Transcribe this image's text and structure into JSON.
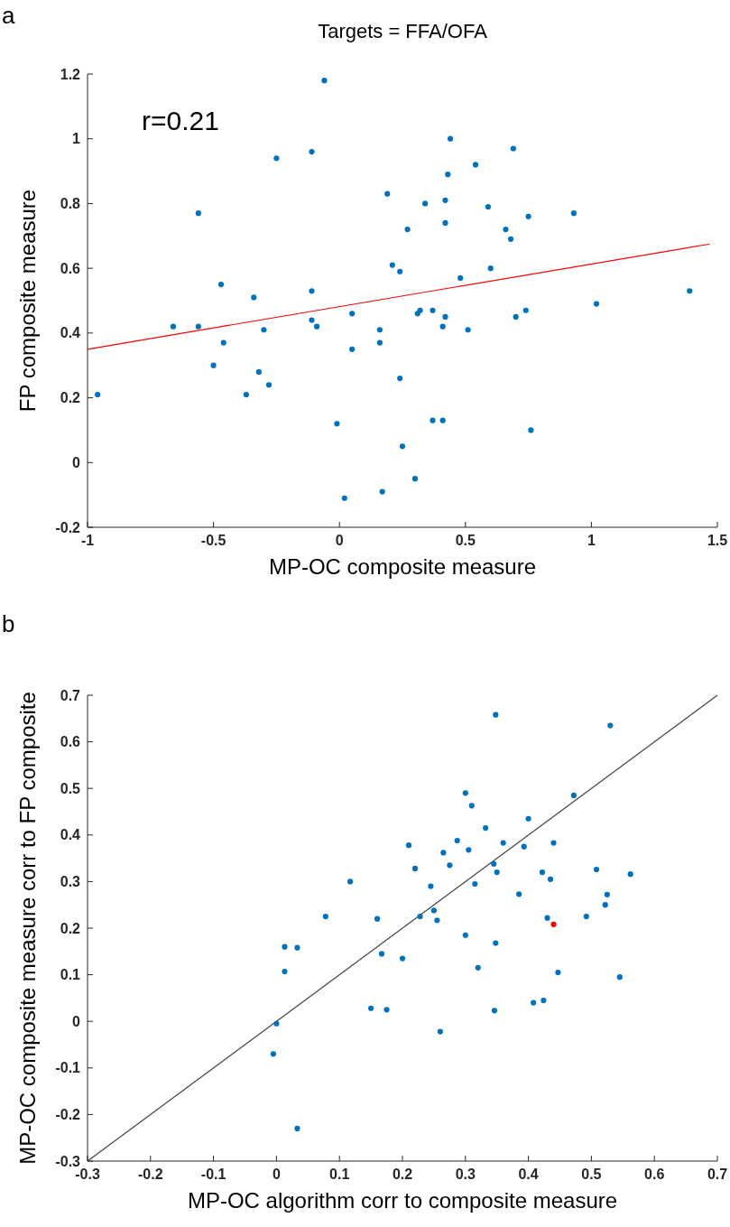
{
  "chart_data": [
    {
      "type": "scatter",
      "title": "Targets = FFA/OFA",
      "xlabel": "MP-OC composite measure",
      "ylabel": "FP composite measure",
      "annotations": [
        "a",
        "r=0.21"
      ],
      "marker": "circle",
      "xlim": [
        -1,
        1.5
      ],
      "ylim": [
        -0.2,
        1.2
      ],
      "xticks": [
        -1,
        -0.5,
        0,
        0.5,
        1,
        1.5
      ],
      "yticks": [
        -0.2,
        0,
        0.2,
        0.4,
        0.6,
        0.8,
        1,
        1.2
      ],
      "series": [
        {
          "color": "#0072bd",
          "x": [
            -0.96,
            -0.66,
            -0.56,
            -0.56,
            -0.47,
            -0.46,
            -0.5,
            -0.34,
            -0.3,
            -0.32,
            -0.37,
            -0.28,
            -0.25,
            -0.11,
            -0.06,
            -0.11,
            -0.11,
            -0.09,
            -0.01,
            0.02,
            0.05,
            0.05,
            0.16,
            0.16,
            0.17,
            0.19,
            0.21,
            0.24,
            0.24,
            0.25,
            0.27,
            0.3,
            0.31,
            0.32,
            0.34,
            0.37,
            0.37,
            0.41,
            0.41,
            0.42,
            0.42,
            0.42,
            0.43,
            0.44,
            0.48,
            0.51,
            0.54,
            0.59,
            0.6,
            0.66,
            0.68,
            0.69,
            0.7,
            0.74,
            0.75,
            0.76,
            0.93,
            1.02,
            1.39
          ],
          "values": [
            0.21,
            0.42,
            0.77,
            0.42,
            0.55,
            0.37,
            0.3,
            0.51,
            0.41,
            0.28,
            0.21,
            0.24,
            0.94,
            0.96,
            1.18,
            0.53,
            0.44,
            0.42,
            0.12,
            -0.11,
            0.46,
            0.35,
            0.41,
            0.37,
            -0.09,
            0.83,
            0.61,
            0.59,
            0.26,
            0.05,
            0.72,
            -0.05,
            0.46,
            0.47,
            0.8,
            0.47,
            0.13,
            0.42,
            0.13,
            0.81,
            0.74,
            0.45,
            0.89,
            1,
            0.57,
            0.41,
            0.92,
            0.79,
            0.6,
            0.72,
            0.69,
            0.97,
            0.45,
            0.47,
            0.76,
            0.1,
            0.77,
            0.49,
            0.53
          ]
        },
        {
          "type": "line",
          "marker": "none",
          "color": "#ff0000",
          "x": [
            -1,
            1.47
          ],
          "values": [
            0.35,
            0.675
          ]
        }
      ]
    },
    {
      "type": "scatter",
      "xlabel": "MP-OC algorithm corr to composite measure",
      "ylabel": "MP-OC composite measure corr to FP composite",
      "annotations": [
        "b"
      ],
      "marker": "circle",
      "xlim": [
        -0.3,
        0.7
      ],
      "ylim": [
        -0.3,
        0.7
      ],
      "xticks": [
        -0.3,
        -0.2,
        -0.1,
        0,
        0.1,
        0.2,
        0.3,
        0.4,
        0.5,
        0.6,
        0.7
      ],
      "yticks": [
        -0.3,
        -0.2,
        -0.1,
        0,
        0.1,
        0.2,
        0.3,
        0.4,
        0.5,
        0.6,
        0.7
      ],
      "series": [
        {
          "type": "line",
          "marker": "none",
          "color": "#404040",
          "x": [
            -0.3,
            0.7
          ],
          "values": [
            -0.3,
            0.7
          ]
        },
        {
          "color": "#0072bd",
          "x": [
            -0.005,
            0,
            0.013,
            0.013,
            0.033,
            0.033,
            0.078,
            0.117,
            0.15,
            0.16,
            0.167,
            0.175,
            0.2,
            0.21,
            0.22,
            0.228,
            0.245,
            0.25,
            0.255,
            0.26,
            0.265,
            0.275,
            0.287,
            0.3,
            0.3,
            0.305,
            0.31,
            0.315,
            0.32,
            0.332,
            0.345,
            0.346,
            0.348,
            0.348,
            0.35,
            0.36,
            0.385,
            0.393,
            0.4,
            0.408,
            0.422,
            0.424,
            0.43,
            0.435,
            0.44,
            0.447,
            0.472,
            0.492,
            0.508,
            0.522,
            0.525,
            0.53,
            0.545,
            0.562
          ],
          "values": [
            -0.07,
            -0.005,
            0.16,
            0.107,
            0.158,
            -0.23,
            0.225,
            0.3,
            0.028,
            0.22,
            0.145,
            0.025,
            0.135,
            0.378,
            0.328,
            0.225,
            0.29,
            0.238,
            0.217,
            -0.022,
            0.362,
            0.335,
            0.388,
            0.49,
            0.185,
            0.368,
            0.463,
            0.295,
            0.115,
            0.415,
            0.338,
            0.023,
            0.658,
            0.168,
            0.32,
            0.383,
            0.273,
            0.375,
            0.435,
            0.04,
            0.32,
            0.045,
            0.222,
            0.305,
            0.383,
            0.105,
            0.485,
            0.225,
            0.326,
            0.25,
            0.272,
            0.635,
            0.095,
            0.316
          ]
        },
        {
          "color": "#ff0000",
          "x": [
            0.44
          ],
          "values": [
            0.208
          ]
        }
      ]
    }
  ]
}
